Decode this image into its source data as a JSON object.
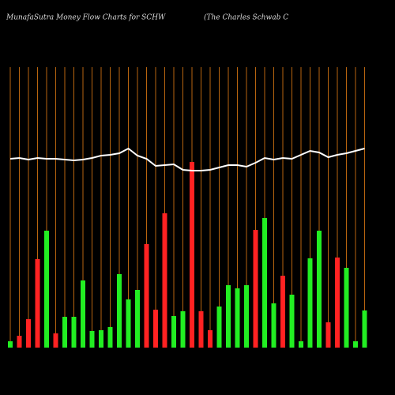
{
  "chart_data": {
    "type": "bar",
    "title": "MunafaSutra  Money Flow  Charts for SCHW",
    "subtitle": "(The   Charles Schwab C",
    "ylim": [
      0,
      355
    ],
    "values": [
      8,
      15,
      36,
      112,
      148,
      18,
      39,
      39,
      85,
      21,
      22,
      26,
      93,
      61,
      73,
      131,
      48,
      170,
      40,
      46,
      235,
      46,
      22,
      52,
      79,
      75,
      79,
      149,
      164,
      56,
      91,
      67,
      8,
      113,
      148,
      32,
      114,
      101,
      8,
      47
    ],
    "colors": [
      "#22ee22",
      "#ff2222",
      "#ff2222",
      "#ff2222",
      "#22ee22",
      "#ff2222",
      "#22ee22",
      "#22ee22",
      "#22ee22",
      "#22ee22",
      "#22ee22",
      "#22ee22",
      "#22ee22",
      "#22ee22",
      "#22ee22",
      "#ff2222",
      "#ff2222",
      "#ff2222",
      "#22ee22",
      "#22ee22",
      "#ff2222",
      "#ff2222",
      "#ff2222",
      "#22ee22",
      "#22ee22",
      "#22ee22",
      "#22ee22",
      "#ff2222",
      "#22ee22",
      "#22ee22",
      "#ff2222",
      "#22ee22",
      "#22ee22",
      "#22ee22",
      "#22ee22",
      "#ff2222",
      "#ff2222",
      "#22ee22",
      "#22ee22",
      "#22ee22"
    ],
    "line": {
      "color": "#ffffff",
      "values": [
        239,
        240,
        238,
        240,
        239,
        239,
        238,
        237,
        238,
        240,
        243,
        244,
        246,
        252,
        243,
        239,
        230,
        231,
        232,
        225,
        224,
        224,
        225,
        228,
        231,
        231,
        229,
        234,
        240,
        238,
        240,
        239,
        244,
        249,
        247,
        241,
        244,
        246,
        249,
        252
      ]
    },
    "grid_color": "#b8650f"
  }
}
